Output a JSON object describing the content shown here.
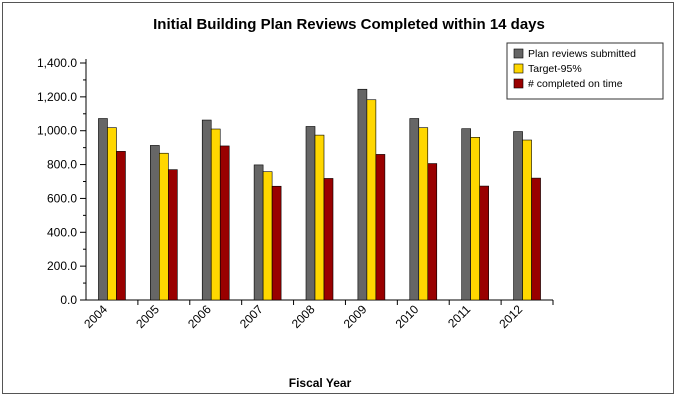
{
  "chart_data": {
    "type": "bar",
    "title": "Initial Building Plan Reviews Completed within 14 days",
    "xlabel": "Fiscal Year",
    "ylabel": "",
    "ylim": [
      0,
      1400
    ],
    "yticks": [
      0,
      200,
      400,
      600,
      800,
      1000,
      1200,
      1400
    ],
    "ytick_labels": [
      "0.0",
      "200.0",
      "400.0",
      "600.0",
      "800.0",
      "1,000.0",
      "1,200.0",
      "1,400.0"
    ],
    "categories": [
      "2004",
      "2005",
      "2006",
      "2007",
      "2008",
      "2009",
      "2010",
      "2011",
      "2012"
    ],
    "series": [
      {
        "name": "Plan reviews submitted",
        "color": "#666666",
        "values": [
          1072,
          913,
          1063,
          798,
          1025,
          1245,
          1072,
          1012,
          995
        ]
      },
      {
        "name": "Target-95%",
        "color": "#ffd700",
        "values": [
          1018,
          867,
          1010,
          758,
          974,
          1183,
          1018,
          961,
          945
        ]
      },
      {
        "name": "# completed on time",
        "color": "#990000",
        "values": [
          878,
          770,
          910,
          672,
          718,
          860,
          806,
          673,
          720
        ]
      }
    ],
    "legend_position": "top-right",
    "grid": false
  }
}
